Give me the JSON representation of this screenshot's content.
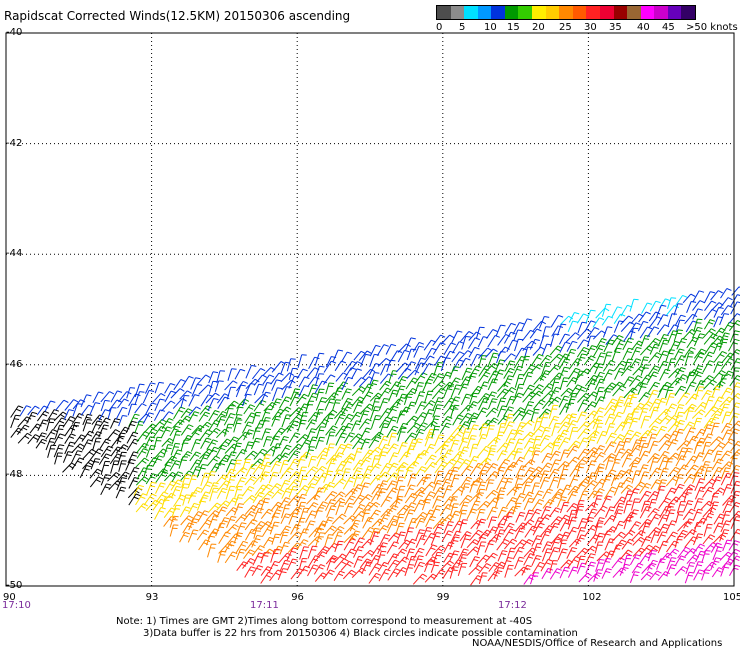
{
  "title": "Rapidscat Corrected Winds(12.5KM) 20150306 ascending",
  "colorbar": {
    "colors": [
      "#4d4d4d",
      "#8c8c8c",
      "#00e0ff",
      "#0099ff",
      "#0033dd",
      "#009900",
      "#33cc00",
      "#ffee00",
      "#ffcc00",
      "#ff8800",
      "#ff5a00",
      "#ff2222",
      "#ee0033",
      "#990000",
      "#996633",
      "#ff00ff",
      "#cc00cc",
      "#6600bb",
      "#330066"
    ],
    "labels": [
      "0",
      "5",
      "10",
      "15",
      "20",
      "25",
      "30",
      "35",
      "40",
      "45",
      ">50 knots"
    ]
  },
  "map": {
    "lat_labels": [
      "-40",
      "-42",
      "-44",
      "-46",
      "-48",
      "-50"
    ],
    "lon_labels": [
      "90",
      "93",
      "96",
      "99",
      "102",
      "105"
    ],
    "time_labels": [
      "17:10",
      "17:11",
      "17:12"
    ]
  },
  "wind_colors": {
    "contaminated": "#000000",
    "light": "#00e0ff",
    "moderate_blue": "#0033dd",
    "fresh_green": "#009900",
    "strong_yellow": "#ffdd00",
    "gale_orange": "#ff8800",
    "storm_red": "#ff2222",
    "violent_magenta": "#ee00cc"
  },
  "notes": {
    "line1": "Note: 1) Times are GMT 2)Times along bottom correspond to measurement at -40S",
    "line2": "3)Data buffer is 22 hrs from 20150306 4) Black circles indicate possible contamination"
  },
  "credit": "NOAA/NESDIS/Office of Research and Applications"
}
